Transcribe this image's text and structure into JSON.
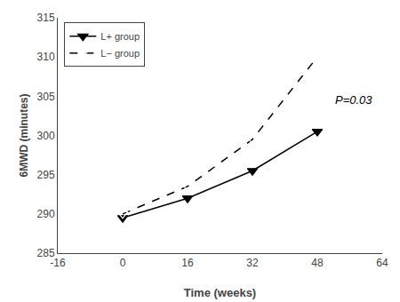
{
  "chart_data": {
    "type": "line",
    "x": [
      0,
      16,
      32,
      48
    ],
    "series": [
      {
        "name": "L+ group",
        "color": "#000000",
        "values": [
          289.5,
          292.0,
          295.5,
          300.5
        ],
        "marker": "triangle-down",
        "line_style": "solid"
      },
      {
        "name": "L− group",
        "color": "#000000",
        "values": [
          290.0,
          293.5,
          299.5,
          310.0
        ],
        "marker": "triangle-down-open",
        "line_style": "dashed"
      }
    ],
    "xlabel": "Time (weeks)",
    "ylabel": "6MWD (minutes)",
    "xlim": [
      -16,
      64
    ],
    "ylim": [
      285,
      315
    ],
    "xticks": [
      -16,
      0,
      16,
      32,
      48,
      64
    ],
    "yticks": [
      285,
      290,
      295,
      300,
      305,
      310,
      315
    ],
    "annotations": [
      {
        "text": "P=0.03",
        "x": 57,
        "y": 304.5
      }
    ],
    "legend": "upper left",
    "grid": false
  }
}
